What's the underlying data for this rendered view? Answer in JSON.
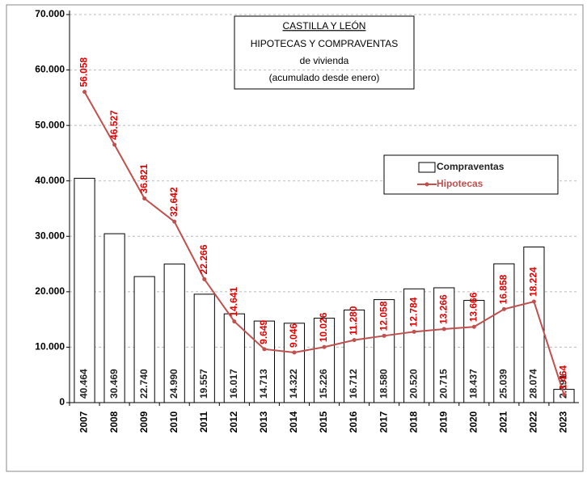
{
  "chart_data": {
    "type": "bar_line",
    "title": "CASTILLA Y LEÓN",
    "subtitle": [
      "HIPOTECAS Y COMPRAVENTAS",
      "de vivienda",
      "(acumulado desde enero)"
    ],
    "categories": [
      "2007",
      "2008",
      "2009",
      "2010",
      "2011",
      "2012",
      "2013",
      "2014",
      "2015",
      "2016",
      "2017",
      "2018",
      "2019",
      "2020",
      "2021",
      "2022",
      "2023"
    ],
    "series": [
      {
        "name": "Compraventas",
        "type": "bar",
        "color": "#ffffff",
        "values": [
          40464,
          30469,
          22740,
          24990,
          19557,
          16017,
          14713,
          14322,
          15226,
          16712,
          18580,
          20520,
          20715,
          18437,
          25039,
          28074,
          2391
        ],
        "value_labels": [
          "40.464",
          "30.469",
          "22.740",
          "24.990",
          "19.557",
          "16.017",
          "14.713",
          "14.322",
          "15.226",
          "16.712",
          "18.580",
          "20.520",
          "20.715",
          "18.437",
          "25.039",
          "28.074",
          "2.391"
        ]
      },
      {
        "name": "Hipotecas",
        "type": "line",
        "color": "#c0504d",
        "values": [
          56058,
          46527,
          36821,
          32642,
          22266,
          14641,
          9649,
          9046,
          10026,
          11280,
          12058,
          12784,
          13266,
          13666,
          16858,
          18224,
          1464
        ],
        "value_labels": [
          "56.058",
          "46.527",
          "36.821",
          "32.642",
          "22.266",
          "14.641",
          "9.649",
          "9.046",
          "10.026",
          "11.280",
          "12.058",
          "12.784",
          "13.266",
          "13.666",
          "16.858",
          "18.224",
          "1.464"
        ]
      }
    ],
    "ylim": [
      0,
      70000
    ],
    "yticks": [
      0,
      {
        "value": 10000,
        "label": "10.000"
      },
      {
        "value": 20000,
        "label": "20.000"
      },
      {
        "value": 30000,
        "label": "30.000"
      },
      {
        "value": 40000,
        "label": "40.000"
      },
      {
        "value": 50000,
        "label": "50.000"
      },
      {
        "value": 60000,
        "label": "60.000"
      },
      {
        "value": 70000,
        "label": "70.000"
      }
    ],
    "grid": true,
    "legend": "right"
  }
}
